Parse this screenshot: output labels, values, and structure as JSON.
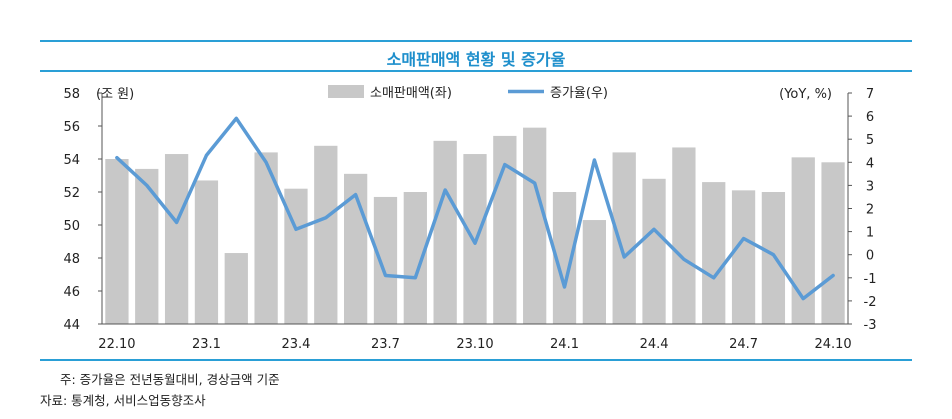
{
  "title": "소매판매액 현황 및 증가율",
  "chart_data": {
    "type": "bar",
    "categories": [
      "22.10",
      "22.11",
      "22.12",
      "23.1",
      "23.2",
      "23.3",
      "23.4",
      "23.5",
      "23.6",
      "23.7",
      "23.8",
      "23.9",
      "23.10",
      "23.11",
      "23.12",
      "24.1",
      "24.2",
      "24.3",
      "24.4",
      "24.5",
      "24.6",
      "24.7",
      "24.8",
      "24.9",
      "24.10"
    ],
    "x_tick_labels": [
      "22.10",
      "23.1",
      "23.4",
      "23.7",
      "23.10",
      "24.1",
      "24.4",
      "24.7",
      "24.10"
    ],
    "series": [
      {
        "name": "소매판매액(좌)",
        "kind": "bar",
        "axis": "left",
        "color": "#c8c8c8",
        "values": [
          54.0,
          53.4,
          54.3,
          52.7,
          48.3,
          54.4,
          52.2,
          54.8,
          53.1,
          51.7,
          52.0,
          55.1,
          54.3,
          55.4,
          55.9,
          52.0,
          50.3,
          54.4,
          52.8,
          54.7,
          52.6,
          52.1,
          52.0,
          54.1,
          53.8
        ]
      },
      {
        "name": "증가율(우)",
        "kind": "line",
        "axis": "right",
        "color": "#5b9bd5",
        "values": [
          4.2,
          3.0,
          1.4,
          4.3,
          5.9,
          4.0,
          1.1,
          1.6,
          2.6,
          -0.9,
          -1.0,
          2.8,
          0.5,
          3.9,
          3.1,
          -1.4,
          4.1,
          -0.1,
          1.1,
          -0.2,
          -1.0,
          0.7,
          0.0,
          -1.9,
          -0.9
        ]
      }
    ],
    "left_axis": {
      "label": "(조 원)",
      "ylim": [
        44,
        58
      ],
      "ticks": [
        44,
        46,
        48,
        50,
        52,
        54,
        56,
        58
      ]
    },
    "right_axis": {
      "label": "(YoY, %)",
      "ylim": [
        -3,
        7
      ],
      "ticks": [
        -3,
        -2,
        -1,
        0,
        1,
        2,
        3,
        4,
        5,
        6,
        7
      ]
    },
    "legend_position": "top-center"
  },
  "notes": {
    "line1": "주: 증가율은 전년동월대비, 경상금액 기준",
    "line2": "자료: 통계청, 서비스업동향조사"
  }
}
